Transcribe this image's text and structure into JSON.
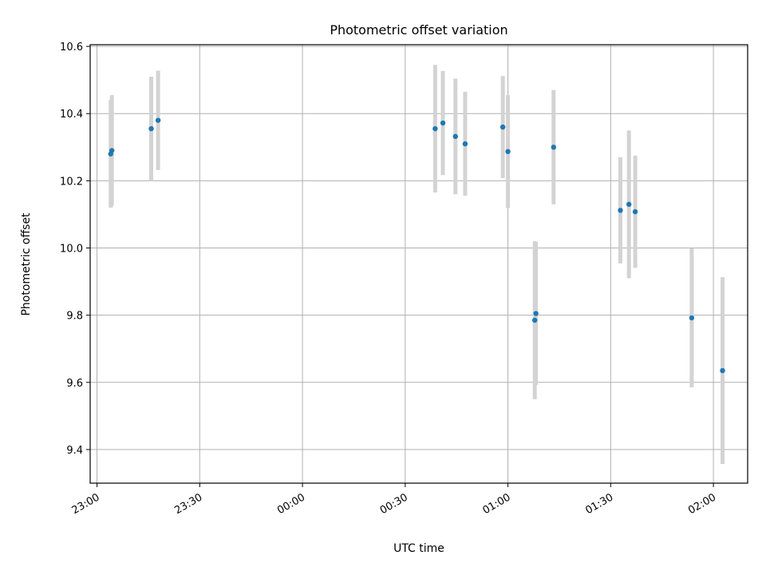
{
  "chart_data": {
    "type": "scatter",
    "title": "Photometric offset variation",
    "xlabel": "UTC time",
    "ylabel": "Photometric offset",
    "xlim": [
      "22:58",
      "02:10"
    ],
    "ylim": [
      9.3,
      10.605
    ],
    "x_ticks": [
      "23:00",
      "23:30",
      "00:00",
      "00:30",
      "01:00",
      "01:30",
      "02:00"
    ],
    "y_ticks": [
      9.4,
      9.6,
      9.8,
      10.0,
      10.2,
      10.4,
      10.6
    ],
    "y_tick_labels": [
      "9.4",
      "9.6",
      "9.8",
      "10.0",
      "10.2",
      "10.4",
      "10.6"
    ],
    "grid": true,
    "colors": {
      "points": "#1f77b4",
      "error_bars": "#d3d3d3"
    },
    "points": [
      {
        "x": "23:04:00",
        "y": 10.28,
        "yerr": 0.16
      },
      {
        "x": "23:04:20",
        "y": 10.29,
        "yerr": 0.165
      },
      {
        "x": "23:15:50",
        "y": 10.355,
        "yerr": 0.155
      },
      {
        "x": "23:17:50",
        "y": 10.38,
        "yerr": 0.148
      },
      {
        "x": "00:38:45",
        "y": 10.355,
        "yerr": 0.19
      },
      {
        "x": "00:41:00",
        "y": 10.372,
        "yerr": 0.155
      },
      {
        "x": "00:44:40",
        "y": 10.332,
        "yerr": 0.172
      },
      {
        "x": "00:47:30",
        "y": 10.31,
        "yerr": 0.155
      },
      {
        "x": "00:58:30",
        "y": 10.36,
        "yerr": 0.152
      },
      {
        "x": "01:00:00",
        "y": 10.287,
        "yerr": 0.168
      },
      {
        "x": "01:07:50",
        "y": 9.785,
        "yerr": 0.235
      },
      {
        "x": "01:08:10",
        "y": 9.805,
        "yerr": 0.213
      },
      {
        "x": "01:13:20",
        "y": 10.3,
        "yerr": 0.17
      },
      {
        "x": "01:32:50",
        "y": 10.112,
        "yerr": 0.158
      },
      {
        "x": "01:35:20",
        "y": 10.13,
        "yerr": 0.22
      },
      {
        "x": "01:37:10",
        "y": 10.108,
        "yerr": 0.167
      },
      {
        "x": "01:53:40",
        "y": 9.792,
        "yerr": 0.207
      },
      {
        "x": "02:02:40",
        "y": 9.635,
        "yerr": 0.278
      }
    ]
  }
}
